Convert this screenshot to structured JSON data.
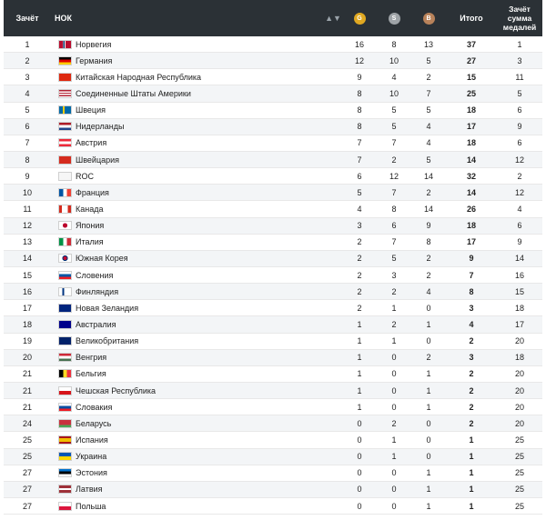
{
  "header": {
    "rank": "Зачёт",
    "noc": "НОК",
    "sort_glyph": "▲▼",
    "gold_letter": "G",
    "silver_letter": "S",
    "bronze_letter": "B",
    "total": "Итого",
    "sum_line1": "Зачёт",
    "sum_line2": "сумма",
    "sum_line3": "медалей"
  },
  "colors": {
    "gold": "#e0a821",
    "silver": "#9ea3a7",
    "bronze": "#b8825a"
  },
  "rows": [
    {
      "rank": "1",
      "country": "Норвегия",
      "flag": "linear-gradient(90deg,#ba0c2f 0 30%,#fff 30% 36%,#00205b 36% 46%,#fff 46% 52%,#ba0c2f 52%)",
      "g": "16",
      "s": "8",
      "b": "13",
      "total": "37",
      "sum": "1"
    },
    {
      "rank": "2",
      "country": "Германия",
      "flag": "linear-gradient(#000 0 33%,#dd0000 33% 66%,#ffce00 66%)",
      "g": "12",
      "s": "10",
      "b": "5",
      "total": "27",
      "sum": "3"
    },
    {
      "rank": "3",
      "country": "Китайская Народная Республика",
      "flag": "linear-gradient(#de2910,#de2910)",
      "g": "9",
      "s": "4",
      "b": "2",
      "total": "15",
      "sum": "11"
    },
    {
      "rank": "4",
      "country": "Соединенные Штаты Америки",
      "flag": "repeating-linear-gradient(#b22234 0 1.4px,#fff 1.4px 2.8px)",
      "g": "8",
      "s": "10",
      "b": "7",
      "total": "25",
      "sum": "5"
    },
    {
      "rank": "5",
      "country": "Швеция",
      "flag": "linear-gradient(90deg,#006aa7 0 30%,#fecc00 30% 45%,#006aa7 45%)",
      "g": "8",
      "s": "5",
      "b": "5",
      "total": "18",
      "sum": "6"
    },
    {
      "rank": "6",
      "country": "Нидерланды",
      "flag": "linear-gradient(#ae1c28 0 33%,#fff 33% 66%,#21468b 66%)",
      "g": "8",
      "s": "5",
      "b": "4",
      "total": "17",
      "sum": "9"
    },
    {
      "rank": "7",
      "country": "Австрия",
      "flag": "linear-gradient(#ed2939 0 33%,#fff 33% 66%,#ed2939 66%)",
      "g": "7",
      "s": "7",
      "b": "4",
      "total": "18",
      "sum": "6"
    },
    {
      "rank": "8",
      "country": "Швейцария",
      "flag": "linear-gradient(#d52b1e,#d52b1e)",
      "g": "7",
      "s": "2",
      "b": "5",
      "total": "14",
      "sum": "12"
    },
    {
      "rank": "9",
      "country": "ROC",
      "flag": "linear-gradient(#f6f6f6,#f6f6f6)",
      "g": "6",
      "s": "12",
      "b": "14",
      "total": "32",
      "sum": "2"
    },
    {
      "rank": "10",
      "country": "Франция",
      "flag": "linear-gradient(90deg,#0055a4 0 33%,#fff 33% 66%,#ef4135 66%)",
      "g": "5",
      "s": "7",
      "b": "2",
      "total": "14",
      "sum": "12"
    },
    {
      "rank": "11",
      "country": "Канада",
      "flag": "linear-gradient(90deg,#d52b1e 0 25%,#fff 25% 75%,#d52b1e 75%)",
      "g": "4",
      "s": "8",
      "b": "14",
      "total": "26",
      "sum": "4"
    },
    {
      "rank": "12",
      "country": "Япония",
      "flag": "radial-gradient(circle,#bc002d 0 2.5px,#fff 2.6px)",
      "g": "3",
      "s": "6",
      "b": "9",
      "total": "18",
      "sum": "6"
    },
    {
      "rank": "13",
      "country": "Италия",
      "flag": "linear-gradient(90deg,#009246 0 33%,#fff 33% 66%,#ce2b37 66%)",
      "g": "2",
      "s": "7",
      "b": "8",
      "total": "17",
      "sum": "9"
    },
    {
      "rank": "14",
      "country": "Южная Корея",
      "flag": "radial-gradient(circle,#c60c30 0 2px,#003478 2.1px 3px,#fff 3.1px)",
      "g": "2",
      "s": "5",
      "b": "2",
      "total": "9",
      "sum": "14"
    },
    {
      "rank": "15",
      "country": "Словения",
      "flag": "linear-gradient(#fff 0 33%,#0056a5 33% 66%,#ed1c24 66%)",
      "g": "2",
      "s": "3",
      "b": "2",
      "total": "7",
      "sum": "16"
    },
    {
      "rank": "16",
      "country": "Финляндия",
      "flag": "linear-gradient(90deg,#fff 0 28%,#003580 28% 44%,#fff 44%)",
      "g": "2",
      "s": "2",
      "b": "4",
      "total": "8",
      "sum": "15"
    },
    {
      "rank": "17",
      "country": "Новая Зеландия",
      "flag": "linear-gradient(#00247d,#00247d)",
      "g": "2",
      "s": "1",
      "b": "0",
      "total": "3",
      "sum": "18"
    },
    {
      "rank": "18",
      "country": "Австралия",
      "flag": "linear-gradient(#00008b,#00008b)",
      "g": "1",
      "s": "2",
      "b": "1",
      "total": "4",
      "sum": "17"
    },
    {
      "rank": "19",
      "country": "Великобритания",
      "flag": "linear-gradient(#012169,#012169)",
      "g": "1",
      "s": "1",
      "b": "0",
      "total": "2",
      "sum": "20"
    },
    {
      "rank": "20",
      "country": "Венгрия",
      "flag": "linear-gradient(#ce2939 0 33%,#fff 33% 66%,#477050 66%)",
      "g": "1",
      "s": "0",
      "b": "2",
      "total": "3",
      "sum": "18"
    },
    {
      "rank": "21",
      "country": "Бельгия",
      "flag": "linear-gradient(90deg,#000 0 33%,#fdda24 33% 66%,#ef3340 66%)",
      "g": "1",
      "s": "0",
      "b": "1",
      "total": "2",
      "sum": "20"
    },
    {
      "rank": "21",
      "country": "Чешская Республика",
      "flag": "linear-gradient(#fff 0 50%,#d7141a 50%)",
      "g": "1",
      "s": "0",
      "b": "1",
      "total": "2",
      "sum": "20"
    },
    {
      "rank": "21",
      "country": "Словакия",
      "flag": "linear-gradient(#fff 0 33%,#0b4ea2 33% 66%,#ee1c25 66%)",
      "g": "1",
      "s": "0",
      "b": "1",
      "total": "2",
      "sum": "20"
    },
    {
      "rank": "24",
      "country": "Беларусь",
      "flag": "linear-gradient(#c8313e 0 66%,#4aa657 66%)",
      "g": "0",
      "s": "2",
      "b": "0",
      "total": "2",
      "sum": "20"
    },
    {
      "rank": "25",
      "country": "Испания",
      "flag": "linear-gradient(#aa151b 0 25%,#f1bf00 25% 75%,#aa151b 75%)",
      "g": "0",
      "s": "1",
      "b": "0",
      "total": "1",
      "sum": "25"
    },
    {
      "rank": "25",
      "country": "Украина",
      "flag": "linear-gradient(#0057b7 0 50%,#ffd700 50%)",
      "g": "0",
      "s": "1",
      "b": "0",
      "total": "1",
      "sum": "25"
    },
    {
      "rank": "27",
      "country": "Эстония",
      "flag": "linear-gradient(#0072ce 0 33%,#000 33% 66%,#fff 66%)",
      "g": "0",
      "s": "0",
      "b": "1",
      "total": "1",
      "sum": "25"
    },
    {
      "rank": "27",
      "country": "Латвия",
      "flag": "linear-gradient(#9e3039 0 40%,#fff 40% 60%,#9e3039 60%)",
      "g": "0",
      "s": "0",
      "b": "1",
      "total": "1",
      "sum": "25"
    },
    {
      "rank": "27",
      "country": "Польша",
      "flag": "linear-gradient(#fff 0 50%,#dc143c 50%)",
      "g": "0",
      "s": "0",
      "b": "1",
      "total": "1",
      "sum": "25"
    }
  ]
}
